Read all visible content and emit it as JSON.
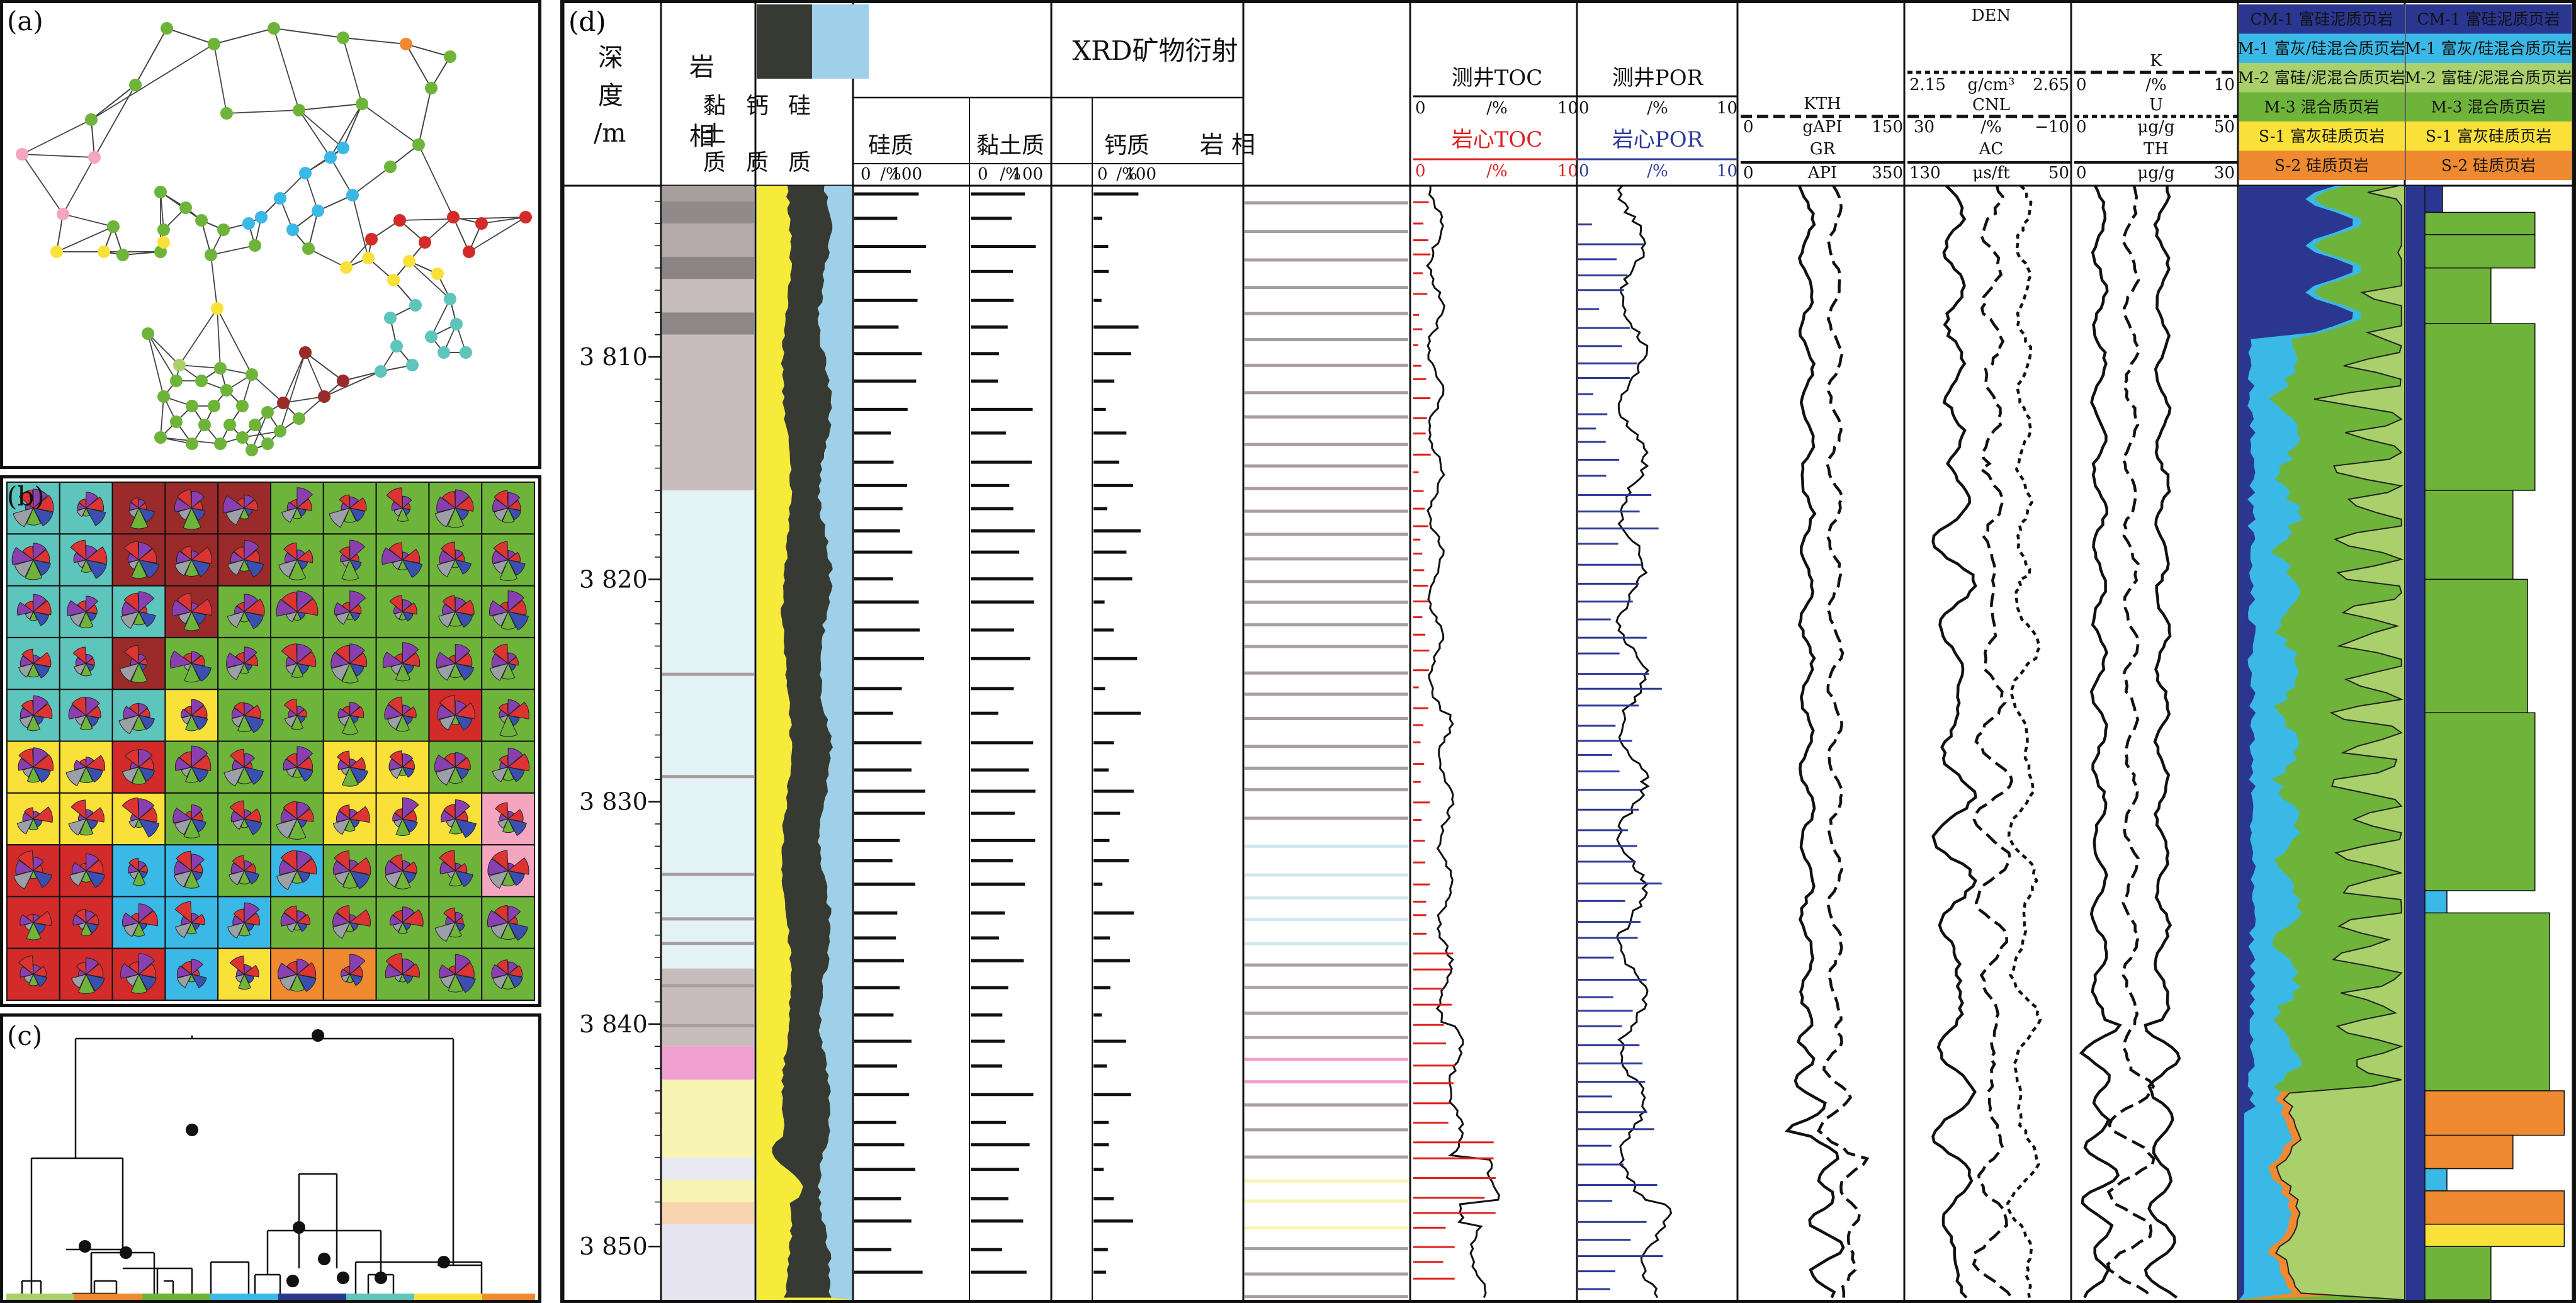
{
  "panels": {
    "a": "(a)",
    "b": "(b)",
    "c": "(c)",
    "d": "(d)"
  },
  "colors": {
    "green": "#6fb43a",
    "cyan": "#3ab8e6",
    "teal": "#5ec5bd",
    "red": "#d32a2a",
    "darkred": "#9b2a2a",
    "yellow": "#f9e13a",
    "orange": "#f08a30",
    "pink": "#f4a6c0",
    "lightgreen": "#a9d06a",
    "navy": "#2b3690",
    "clay": "#363a33",
    "calc": "#9fd0ea",
    "sili": "#f6ea3a",
    "toc_red": "#e02020",
    "por_blue": "#2d3a9a"
  },
  "log": {
    "depth_header": [
      "深",
      "度",
      "/m"
    ],
    "litho_header": [
      "岩",
      "相"
    ],
    "ternary_labels": [
      "黏",
      "土",
      "质",
      "钙",
      "质",
      "硅",
      "质"
    ],
    "xrd_title": "XRD矿物衍射",
    "xrd_tracks": [
      {
        "name": "硅质",
        "unit": "/%",
        "min": "0",
        "max": "100"
      },
      {
        "name": "黏土质",
        "unit": "/%",
        "min": "0",
        "max": "100"
      },
      {
        "name": "钙质",
        "unit": "/%",
        "min": "0",
        "max": "100"
      }
    ],
    "facies_header": "岩 相",
    "toc": {
      "title": "测井TOC",
      "min": "0",
      "unit": "/%",
      "max": "10",
      "core_title": "岩心TOC",
      "core_min": "0",
      "core_unit": "/%",
      "core_max": "10"
    },
    "por": {
      "title": "测井POR",
      "min": "0",
      "unit": "/%",
      "max": "10",
      "core_title": "岩心POR",
      "core_min": "0",
      "core_unit": "/%",
      "core_max": "10"
    },
    "gr": {
      "kth": "KTH",
      "kth_unit": "gAPI",
      "kth_min": "0",
      "kth_max": "150",
      "gr": "GR",
      "gr_unit": "API",
      "gr_min": "0",
      "gr_max": "350"
    },
    "den": {
      "den": "DEN",
      "den_unit": "g/cm³",
      "den_min": "2.15",
      "den_max": "2.65",
      "cnl": "CNL",
      "cnl_unit": "/%",
      "cnl_min": "30",
      "cnl_max": "−10",
      "ac": "AC",
      "ac_unit": "μs/ft",
      "ac_min": "130",
      "ac_max": "50"
    },
    "k": {
      "k": "K",
      "k_unit": "/%",
      "k_min": "0",
      "k_max": "10",
      "u": "U",
      "u_unit": "μg/g",
      "u_min": "0",
      "u_max": "50",
      "th": "TH",
      "th_unit": "μg/g",
      "th_min": "0",
      "th_max": "30"
    },
    "depth_ticks": [
      "3 810",
      "3 820",
      "3 830",
      "3 840",
      "3 850"
    ],
    "legend": [
      "CM-1 富硅泥质页岩",
      "M-1 富灰/硅混合质页岩",
      "M-2 富硅/泥混合质页岩",
      "M-3 混合质页岩",
      "S-1 富灰硅质页岩",
      "S-2 硅质页岩"
    ]
  }
}
